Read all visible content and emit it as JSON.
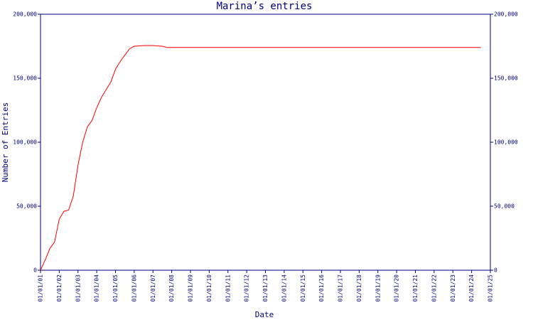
{
  "chart_data": {
    "type": "line",
    "title": "Marina’s entries",
    "xlabel": "Date",
    "ylabel": "Number of Entries",
    "x": [
      "01/01/01",
      "04/01/01",
      "07/01/01",
      "10/01/01",
      "01/01/02",
      "04/01/02",
      "07/01/02",
      "10/01/02",
      "01/01/03",
      "04/01/03",
      "07/01/03",
      "10/01/03",
      "01/01/04",
      "04/01/04",
      "07/01/04",
      "10/01/04",
      "01/01/05",
      "04/01/05",
      "07/01/05",
      "10/01/05",
      "01/01/06",
      "07/01/06",
      "01/01/07",
      "07/01/07",
      "10/01/07",
      "01/01/08",
      "07/01/24"
    ],
    "series": [
      {
        "name": "Entries",
        "color": "#ff0000",
        "values": [
          0,
          8000,
          17000,
          22000,
          40000,
          46000,
          47000,
          58000,
          82000,
          100000,
          112000,
          117000,
          127000,
          135000,
          141000,
          147000,
          157000,
          163000,
          168000,
          173000,
          175000,
          175500,
          175500,
          175000,
          174000,
          174000,
          174000
        ]
      }
    ],
    "xticks": [
      "01/01/01",
      "01/01/02",
      "01/01/03",
      "01/01/04",
      "01/01/05",
      "01/01/06",
      "01/01/07",
      "01/01/08",
      "01/01/09",
      "01/01/10",
      "01/01/11",
      "01/01/12",
      "01/01/13",
      "01/01/14",
      "01/01/15",
      "01/01/16",
      "01/01/17",
      "01/01/18",
      "01/01/19",
      "01/01/20",
      "01/01/21",
      "01/01/22",
      "01/01/23",
      "01/01/24",
      "01/01/25"
    ],
    "ylim": [
      0,
      200000
    ],
    "yticks": [
      0,
      {
        "value": 50000,
        "label": "50,000"
      },
      {
        "value": 100000,
        "label": "100,000"
      },
      {
        "value": 150000,
        "label": "150,000"
      },
      {
        "value": 200000,
        "label": "200,000"
      }
    ],
    "axis_color": "#000080"
  }
}
